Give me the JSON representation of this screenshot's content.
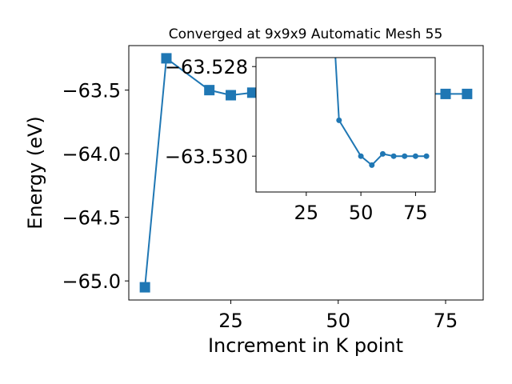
{
  "chart_data": [
    {
      "type": "line",
      "title": "Converged at 9x9x9 Automatic Mesh 55",
      "xlabel": "Increment in K point",
      "ylabel": "Energy (eV)",
      "xlim": [
        1.25,
        83.75
      ],
      "ylim": [
        -65.15,
        -63.15
      ],
      "xticks": [
        25,
        50,
        75
      ],
      "xtick_labels": [
        "25",
        "50",
        "75"
      ],
      "yticks": [
        -65.0,
        -64.5,
        -64.0,
        -63.5
      ],
      "ytick_labels": [
        "−65.0",
        "−64.5",
        "−64.0",
        "−63.5"
      ],
      "marker": "square",
      "color": "#1f77b4",
      "grid": false,
      "series": [
        {
          "x": [
            5,
            10,
            20,
            25,
            30,
            75,
            80
          ],
          "y": [
            -65.05,
            -63.25,
            -63.5,
            -63.54,
            -63.52,
            -63.53,
            -63.53
          ]
        }
      ]
    },
    {
      "type": "line",
      "role": "inset",
      "xlim": [
        2,
        84
      ],
      "ylim": [
        -63.5308,
        -63.5278
      ],
      "xticks": [
        25,
        50,
        75
      ],
      "xtick_labels": [
        "25",
        "50",
        "75"
      ],
      "yticks": [
        -63.53,
        -63.528
      ],
      "ytick_labels": [
        "−63.530",
        "−63.528"
      ],
      "marker": "circle",
      "color": "#1f77b4",
      "grid": false,
      "series": [
        {
          "x": [
            38,
            40,
            50,
            55,
            60,
            65,
            70,
            75,
            80
          ],
          "y": [
            -63.5275,
            -63.5292,
            -63.53,
            -63.5302,
            -63.52995,
            -63.53,
            -63.53,
            -63.53,
            -63.53
          ]
        }
      ]
    }
  ]
}
